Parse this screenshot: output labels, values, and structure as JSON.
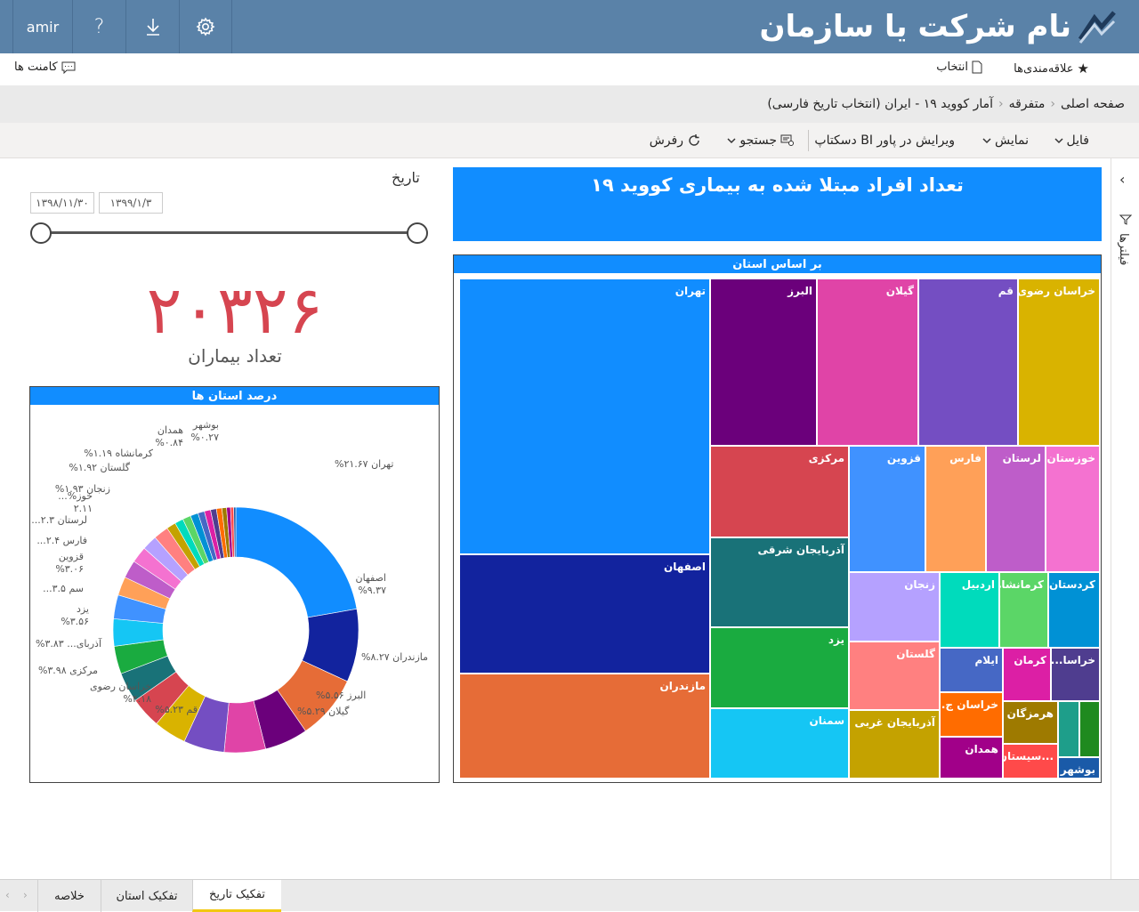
{
  "topbar": {
    "user": "amir",
    "help": "?",
    "brand": "نام شرکت یا سازمان"
  },
  "row2": {
    "favorites": "علاقه‌مندی‌ها",
    "select": "انتخاب",
    "comments": "کامنت ها"
  },
  "breadcrumb": [
    "صفحه اصلی",
    "متفرقه",
    "آمار کووید ۱۹ - ایران (انتخاب تاریخ فارسی)"
  ],
  "toolbar": {
    "file": "فایل",
    "view": "نمایش",
    "edit": "ویرایش در پاور BI دسکتاپ",
    "search": "جستجو",
    "refresh": "رفرش"
  },
  "filters_label": "فیلترها",
  "report_title": "تعداد افراد مبتلا شده به بیماری کووید ۱۹",
  "slicer": {
    "title": "تاریخ",
    "start": "۱۳۹۸/۱۱/۳۰",
    "end": "۱۳۹۹/۱/۳",
    "value_start": 0,
    "value_end": 1
  },
  "kpi": {
    "value": "۲۰۳۲۶",
    "label": "تعداد بیماران"
  },
  "treemap": {
    "title": "بر اساس استان",
    "cells": [
      {
        "label": "تهران",
        "color": "#118dff"
      },
      {
        "label": "اصفهان",
        "color": "#12239e"
      },
      {
        "label": "مازندران",
        "color": "#e66c37"
      },
      {
        "label": "البرز",
        "color": "#6b007b"
      },
      {
        "label": "گیلان",
        "color": "#e044a7"
      },
      {
        "label": "قم",
        "color": "#744ec2"
      },
      {
        "label": "خراسان رضوی",
        "color": "#d9b300"
      },
      {
        "label": "مرکزی",
        "color": "#d64550"
      },
      {
        "label": "آذربایجان شرقی",
        "color": "#197278"
      },
      {
        "label": "یزد",
        "color": "#1aab40"
      },
      {
        "label": "سمنان",
        "color": "#15c6f4"
      },
      {
        "label": "قزوین",
        "color": "#4092ff"
      },
      {
        "label": "فارس",
        "color": "#ffa058"
      },
      {
        "label": "لرستان",
        "color": "#be5dc9"
      },
      {
        "label": "خوزستان",
        "color": "#f472d0"
      },
      {
        "label": "زنجان",
        "color": "#b5a1ff"
      },
      {
        "label": "گلستان",
        "color": "#ff8080"
      },
      {
        "label": "آذربایجان غربی",
        "color": "#c4a200"
      },
      {
        "label": "اردبیل",
        "color": "#00dbbc"
      },
      {
        "label": "کرمانشاه",
        "color": "#5bd667"
      },
      {
        "label": "کردستان",
        "color": "#0091d5"
      },
      {
        "label": "ایلام",
        "color": "#4668c5"
      },
      {
        "label": "کرمان",
        "color": "#dc1fa5"
      },
      {
        "label": "خراسا...",
        "color": "#4f3d8f"
      },
      {
        "label": "خراسان ج...",
        "color": "#ff6c00"
      },
      {
        "label": "هرمزگان",
        "color": "#9e7a00"
      },
      {
        "label": "همدان",
        "color": "#a10089"
      },
      {
        "label": "...سیستان",
        "color": "#ff4a4a"
      },
      {
        "label": "",
        "color": "#1e9e8a"
      },
      {
        "label": "",
        "color": "#1f8a1f"
      },
      {
        "label": "بوشهر",
        "color": "#1a5aa8"
      }
    ]
  },
  "donut": {
    "title": "درصد استان ها",
    "slices": [
      {
        "name": "تهران",
        "value": 21.67,
        "color": "#118dff"
      },
      {
        "name": "اصفهان",
        "value": 9.37,
        "color": "#12239e"
      },
      {
        "name": "مازندران",
        "value": 8.27,
        "color": "#e66c37"
      },
      {
        "name": "البرز",
        "value": 5.56,
        "color": "#6b007b"
      },
      {
        "name": "گیلان",
        "value": 5.29,
        "color": "#e044a7"
      },
      {
        "name": "قم",
        "value": 5.23,
        "color": "#744ec2"
      },
      {
        "name": "خراسان رضوی",
        "value": 4.18,
        "color": "#d9b300"
      },
      {
        "name": "مرکزی",
        "value": 3.98,
        "color": "#d64550"
      },
      {
        "name": "آذربای...",
        "value": 3.83,
        "color": "#197278"
      },
      {
        "name": "یزد",
        "value": 3.56,
        "color": "#1aab40"
      },
      {
        "name": "سم...",
        "value": 3.5,
        "color": "#15c6f4"
      },
      {
        "name": "قزوین",
        "value": 3.06,
        "color": "#4092ff"
      },
      {
        "name": "فارس",
        "value": 2.4,
        "color": "#ffa058"
      },
      {
        "name": "لرستان",
        "value": 2.3,
        "color": "#be5dc9"
      },
      {
        "name": "خوز...",
        "value": 2.11,
        "color": "#f472d0"
      },
      {
        "name": "زنجان",
        "value": 1.93,
        "color": "#b5a1ff"
      },
      {
        "name": "گلستان",
        "value": 1.92,
        "color": "#ff8080"
      },
      {
        "name": "کرمانشاه",
        "value": 1.19,
        "color": "#c4a200"
      },
      {
        "name": "",
        "value": 1.1,
        "color": "#00dbbc"
      },
      {
        "name": "",
        "value": 1.05,
        "color": "#5bd667"
      },
      {
        "name": "",
        "value": 1.0,
        "color": "#0091d5"
      },
      {
        "name": "همدان",
        "value": 0.84,
        "color": "#4668c5"
      },
      {
        "name": "",
        "value": 0.8,
        "color": "#dc1fa5"
      },
      {
        "name": "",
        "value": 0.75,
        "color": "#4f3d8f"
      },
      {
        "name": "",
        "value": 0.7,
        "color": "#ff6c00"
      },
      {
        "name": "",
        "value": 0.6,
        "color": "#9e7a00"
      },
      {
        "name": "",
        "value": 0.5,
        "color": "#a10089"
      },
      {
        "name": "",
        "value": 0.4,
        "color": "#ff4a4a"
      },
      {
        "name": "بوشهر",
        "value": 0.27,
        "color": "#1a5aa8"
      }
    ],
    "labels": [
      {
        "t1": "%تهران ۲۱.۶۷",
        "t2": ""
      },
      {
        "t1": "اصفهان",
        "t2": "%۹.۳۷"
      },
      {
        "t1": "%مازندران ۸.۲۷",
        "t2": ""
      },
      {
        "t1": "%البرز ۵.۵۶",
        "t2": ""
      },
      {
        "t1": "%گیلان ۵.۲۹",
        "t2": ""
      },
      {
        "t1": "%قم ۵.۲۳",
        "t2": ""
      },
      {
        "t1": "خراسان رضوی",
        "t2": "%۴.۱۸"
      },
      {
        "t1": "%مرکزی ۳.۹۸",
        "t2": ""
      },
      {
        "t1": "%آذربای... ۳.۸۳",
        "t2": ""
      },
      {
        "t1": "یزد",
        "t2": "%۳.۵۶"
      },
      {
        "t1": "...سم ۳.۵",
        "t2": ""
      },
      {
        "t1": "قزوین",
        "t2": "%۳.۰۶"
      },
      {
        "t1": "...فارس ۲.۴",
        "t2": ""
      },
      {
        "t1": "...لرستان ۲.۳",
        "t2": ""
      },
      {
        "t1": "...%خوز",
        "t2": "۲.۱۱"
      },
      {
        "t1": "%زنجان ۱.۹۳",
        "t2": ""
      },
      {
        "t1": "%گلستان ۱.۹۲",
        "t2": ""
      },
      {
        "t1": "%کرمانشاه ۱.۱۹",
        "t2": ""
      },
      {
        "t1": "همدان",
        "t2": "%۰.۸۴"
      },
      {
        "t1": "بوشهر",
        "t2": "%۰.۲۷"
      }
    ]
  },
  "page_tabs": [
    "تفکیک تاریخ",
    "تفکیک استان",
    "خلاصه"
  ]
}
